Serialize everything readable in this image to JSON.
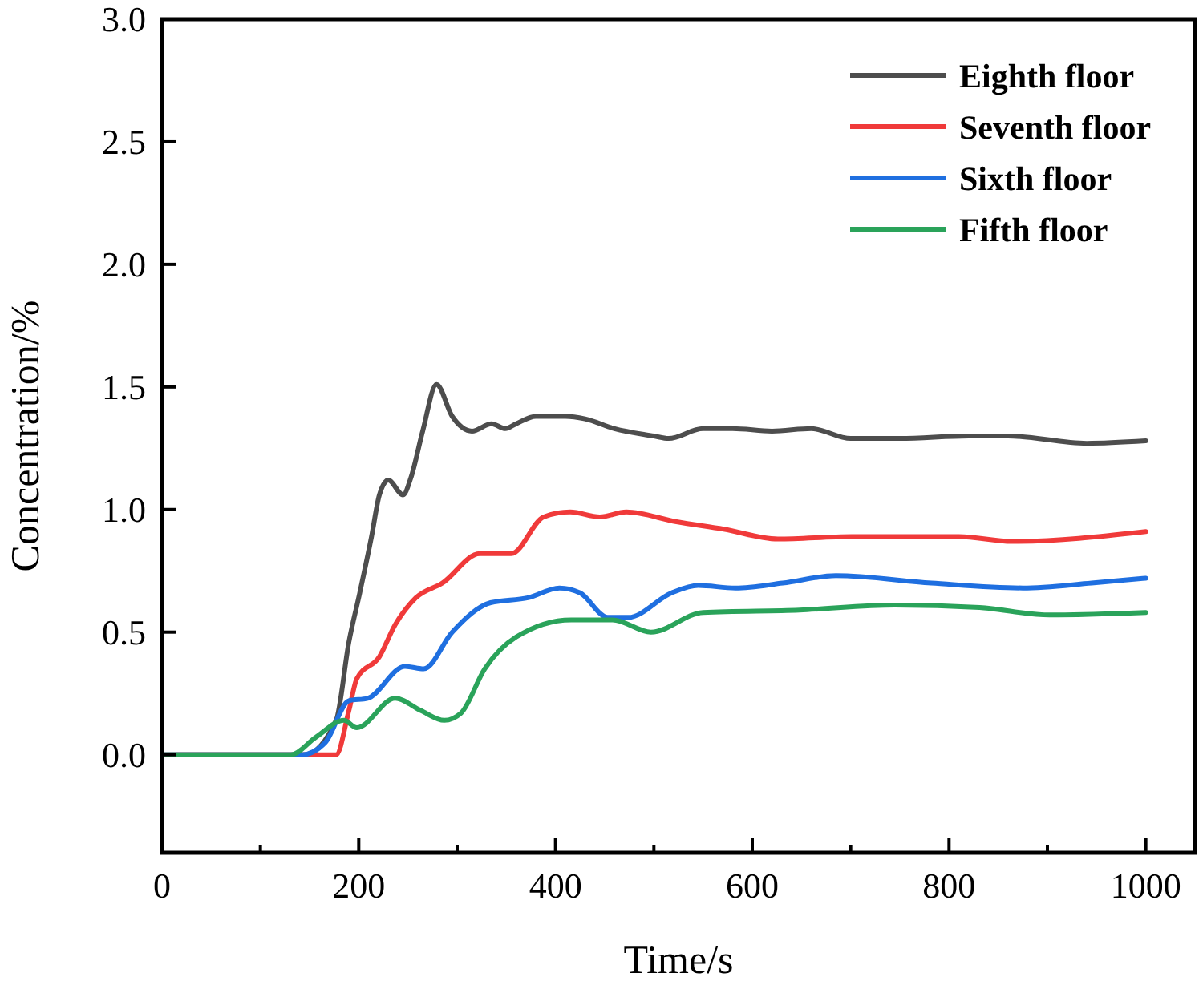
{
  "chart_data": {
    "type": "line",
    "xlabel": "Time/s",
    "ylabel": "Concentration/%",
    "xlim": [
      0,
      1050
    ],
    "ylim": [
      -0.4,
      3.0
    ],
    "xticks": [
      0,
      {
        "value": 100,
        "label": null
      },
      200,
      {
        "value": 300,
        "label": null
      },
      400,
      {
        "value": 500,
        "label": null
      },
      600,
      {
        "value": 700,
        "label": null
      },
      800,
      {
        "value": 900,
        "label": null
      },
      1000
    ],
    "yticks": [
      {
        "value": 0,
        "label": "0.0"
      },
      0.5,
      {
        "value": 1,
        "label": "1.0"
      },
      1.5,
      {
        "value": 2,
        "label": "2.0"
      },
      2.5,
      {
        "value": 3,
        "label": "3.0"
      }
    ],
    "legend": "top right",
    "grid": false,
    "marker": "none",
    "line_style": "solid",
    "series": [
      {
        "name": "Eighth floor",
        "color": "#4d4d4d",
        "x": [
          0,
          145,
          177,
          190,
          201,
          213,
          221,
          230,
          245,
          253,
          265,
          279,
          295,
          315,
          335,
          349,
          360,
          380,
          410,
          430,
          460,
          500,
          515,
          550,
          580,
          620,
          660,
          700,
          750,
          820,
          860,
          940,
          1000
        ],
        "values": [
          0,
          0,
          0.14,
          0.46,
          0.66,
          0.89,
          1.06,
          1.12,
          1.06,
          1.13,
          1.32,
          1.51,
          1.38,
          1.32,
          1.35,
          1.33,
          1.35,
          1.38,
          1.38,
          1.37,
          1.33,
          1.3,
          1.29,
          1.33,
          1.33,
          1.32,
          1.33,
          1.29,
          1.29,
          1.3,
          1.3,
          1.27,
          1.28
        ]
      },
      {
        "name": "Seventh floor",
        "color": "#f03a3a",
        "x": [
          0,
          177,
          190,
          198,
          221,
          237,
          258,
          285,
          323,
          355,
          388,
          415,
          445,
          472,
          523,
          571,
          626,
          701,
          810,
          864,
          1000
        ],
        "values": [
          0,
          0,
          0.18,
          0.31,
          0.4,
          0.53,
          0.64,
          0.7,
          0.82,
          0.82,
          0.97,
          0.99,
          0.97,
          0.99,
          0.95,
          0.92,
          0.88,
          0.89,
          0.89,
          0.87,
          0.91
        ]
      },
      {
        "name": "Sixth floor",
        "color": "#1f6fe0",
        "x": [
          0,
          142,
          166,
          190,
          209,
          247,
          266,
          295,
          334,
          372,
          404,
          425,
          453,
          474,
          518,
          545,
          583,
          631,
          685,
          782,
          875,
          945,
          1000
        ],
        "values": [
          0,
          0,
          0.05,
          0.22,
          0.23,
          0.36,
          0.35,
          0.5,
          0.62,
          0.64,
          0.68,
          0.66,
          0.56,
          0.56,
          0.66,
          0.69,
          0.68,
          0.7,
          0.73,
          0.7,
          0.68,
          0.7,
          0.72
        ]
      },
      {
        "name": "Fifth floor",
        "color": "#2aa35a",
        "x": [
          0,
          131,
          156,
          185,
          198,
          237,
          263,
          287,
          304,
          328,
          360,
          416,
          458,
          497,
          550,
          648,
          745,
          831,
          902,
          1000
        ],
        "values": [
          0,
          0,
          0.07,
          0.14,
          0.11,
          0.23,
          0.18,
          0.14,
          0.17,
          0.35,
          0.48,
          0.55,
          0.55,
          0.5,
          0.58,
          0.59,
          0.61,
          0.6,
          0.57,
          0.58
        ]
      }
    ]
  }
}
